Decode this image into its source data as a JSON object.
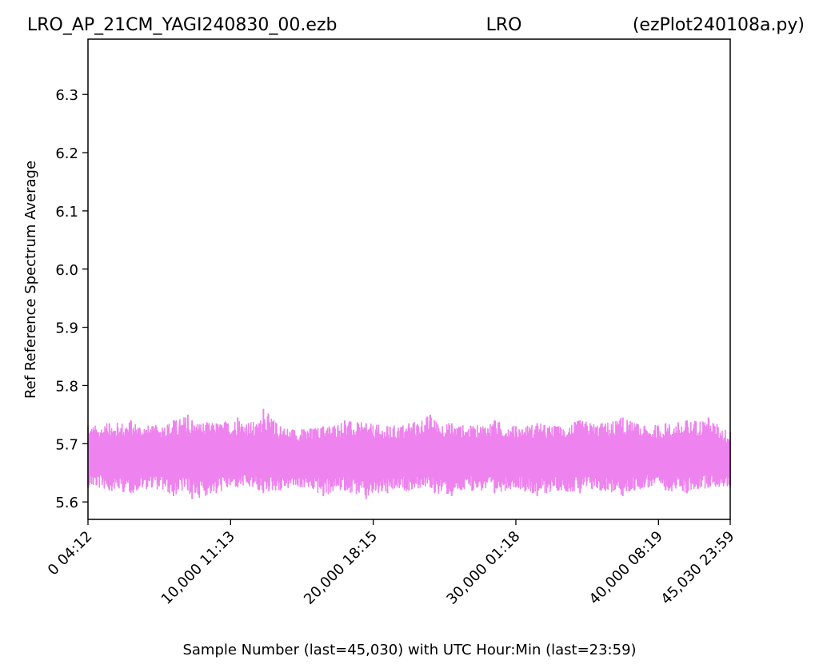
{
  "header": {
    "left_title": "LRO_AP_21CM_YAGI240830_00.ezb",
    "center_title": "LRO",
    "right_title": "(ezPlot240108a.py)"
  },
  "chart_data": {
    "type": "line",
    "title": "LRO_AP_21CM_YAGI240830_00.ezb",
    "xlabel": "Sample Number (last=45,030) with UTC Hour:Min (last=23:59)",
    "ylabel": "Ref Reference Spectrum Average",
    "xlim": [
      0,
      45030
    ],
    "ylim": [
      5.57,
      6.395
    ],
    "x_ticks": [
      {
        "value": 0,
        "label": "0  04:12"
      },
      {
        "value": 10000,
        "label": "10,000  11:13"
      },
      {
        "value": 20000,
        "label": "20,000  18:15"
      },
      {
        "value": 30000,
        "label": "30,000  01:18"
      },
      {
        "value": 40000,
        "label": "40,000  08:19"
      },
      {
        "value": 45030,
        "label": "45,030  23:59"
      }
    ],
    "y_ticks": [
      5.6,
      5.7,
      5.8,
      5.9,
      6.0,
      6.1,
      6.2,
      6.3
    ],
    "y_tick_labels": [
      "5.6",
      "5.7",
      "5.8",
      "5.9",
      "6.0",
      "6.1",
      "6.2",
      "6.3"
    ],
    "grid": false,
    "color": "#ee82ee",
    "series": [
      {
        "x": [
          0,
          1500,
          3000,
          4500,
          6000,
          7000,
          7300,
          9000,
          10500,
          12000,
          12300,
          13500,
          15000,
          16500,
          18000,
          19500,
          21000,
          22500,
          24000,
          24300,
          25500,
          27000,
          28500,
          30000,
          31500,
          33000,
          34500,
          36000,
          37500,
          39000,
          40500,
          42000,
          43500,
          45030
        ],
        "y_mean": [
          5.675,
          5.68,
          5.675,
          5.68,
          5.678,
          5.675,
          5.675,
          5.68,
          5.676,
          5.678,
          5.68,
          5.676,
          5.675,
          5.678,
          5.68,
          5.676,
          5.678,
          5.675,
          5.68,
          5.678,
          5.676,
          5.68,
          5.678,
          5.675,
          5.678,
          5.676,
          5.68,
          5.678,
          5.676,
          5.678,
          5.675,
          5.678,
          5.676,
          5.672
        ],
        "y_max": [
          5.73,
          5.735,
          5.74,
          5.73,
          5.74,
          5.75,
          5.74,
          5.735,
          5.745,
          5.735,
          5.76,
          5.73,
          5.725,
          5.73,
          5.74,
          5.735,
          5.73,
          5.735,
          5.75,
          5.74,
          5.735,
          5.73,
          5.74,
          5.73,
          5.735,
          5.73,
          5.74,
          5.735,
          5.745,
          5.73,
          5.735,
          5.74,
          5.745,
          5.72
        ],
        "y_min": [
          5.625,
          5.62,
          5.615,
          5.625,
          5.61,
          5.62,
          5.605,
          5.615,
          5.625,
          5.62,
          5.615,
          5.62,
          5.625,
          5.61,
          5.62,
          5.605,
          5.615,
          5.62,
          5.625,
          5.615,
          5.61,
          5.62,
          5.615,
          5.625,
          5.61,
          5.62,
          5.615,
          5.62,
          5.61,
          5.625,
          5.62,
          5.615,
          5.625,
          5.625
        ]
      }
    ]
  }
}
